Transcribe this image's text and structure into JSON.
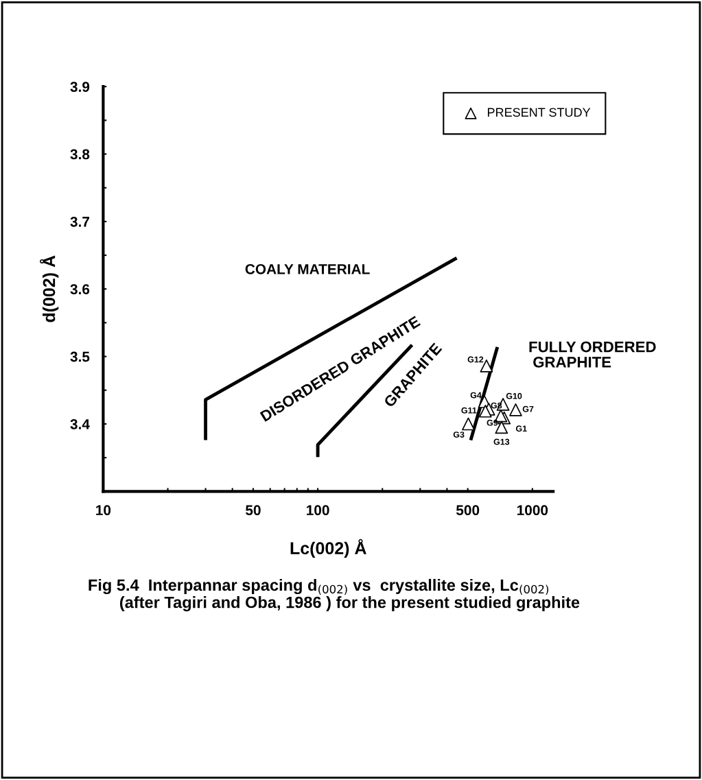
{
  "chart_data": {
    "type": "scatter",
    "xlabel": "Lc(002) Å",
    "ylabel": "d(002) Å",
    "log": "x",
    "xlim": [
      10,
      1250
    ],
    "ylim": [
      3.3,
      3.9
    ],
    "xticks": [
      10,
      {
        "value": 20,
        "label": null
      },
      {
        "value": 30,
        "label": null
      },
      {
        "value": 40,
        "label": null
      },
      50,
      {
        "value": 60,
        "label": null
      },
      {
        "value": 70,
        "label": null
      },
      {
        "value": 80,
        "label": null
      },
      {
        "value": 90,
        "label": null
      },
      100,
      {
        "value": 200,
        "label": null
      },
      {
        "value": 300,
        "label": null
      },
      {
        "value": 400,
        "label": null
      },
      500,
      1000
    ],
    "yticks": [
      {
        "value": 3.35,
        "label": null
      },
      3.4,
      {
        "value": 3.45,
        "label": null
      },
      3.5,
      {
        "value": 3.55,
        "label": null
      },
      3.6,
      {
        "value": 3.65,
        "label": null
      },
      3.7,
      {
        "value": 3.75,
        "label": null
      },
      3.8,
      {
        "value": 3.85,
        "label": null
      },
      3.9
    ],
    "grid": false,
    "legend": "top right",
    "series": [
      {
        "name": "PRESENT STUDY",
        "marker": "triangle",
        "color": "#000000",
        "x": [
          739,
          503,
          598,
          626,
          836,
          713,
          730,
          604,
          611,
          718
        ],
        "values": [
          3.409,
          3.4,
          3.433,
          3.422,
          3.421,
          3.412,
          3.429,
          3.419,
          3.486,
          3.395
        ],
        "value_labels": [
          "G1",
          "G3",
          "G4",
          "G8",
          "G7",
          "G9",
          "G10",
          "G11",
          "G12",
          "G13"
        ]
      },
      {
        "type": "line",
        "color": "#000000",
        "line_style": "solid",
        "marker": "none",
        "x": [
          30,
          30,
          444
        ],
        "values": [
          3.376,
          3.436,
          3.646
        ]
      },
      {
        "type": "line",
        "color": "#000000",
        "line_style": "solid",
        "marker": "none",
        "x": [
          100,
          100,
          275
        ],
        "values": [
          3.351,
          3.369,
          3.517
        ]
      },
      {
        "type": "line",
        "color": "#000000",
        "line_style": "solid",
        "marker": "none",
        "x": [
          516,
          687
        ],
        "values": [
          3.376,
          3.514
        ]
      }
    ],
    "annotations": [
      "COALY MATERIAL",
      "DISORDERED GRAPHITE",
      "GRAPHITE",
      "FULLY ORDERED\n GRAPHITE",
      "Fig 5.4  Interpannar spacing d$_{(002)}$ vs  crystallite size, Lc$_{(002)}$\n       (after Tagiri and Oba, 1986 ) for the present studied graphite"
    ]
  }
}
